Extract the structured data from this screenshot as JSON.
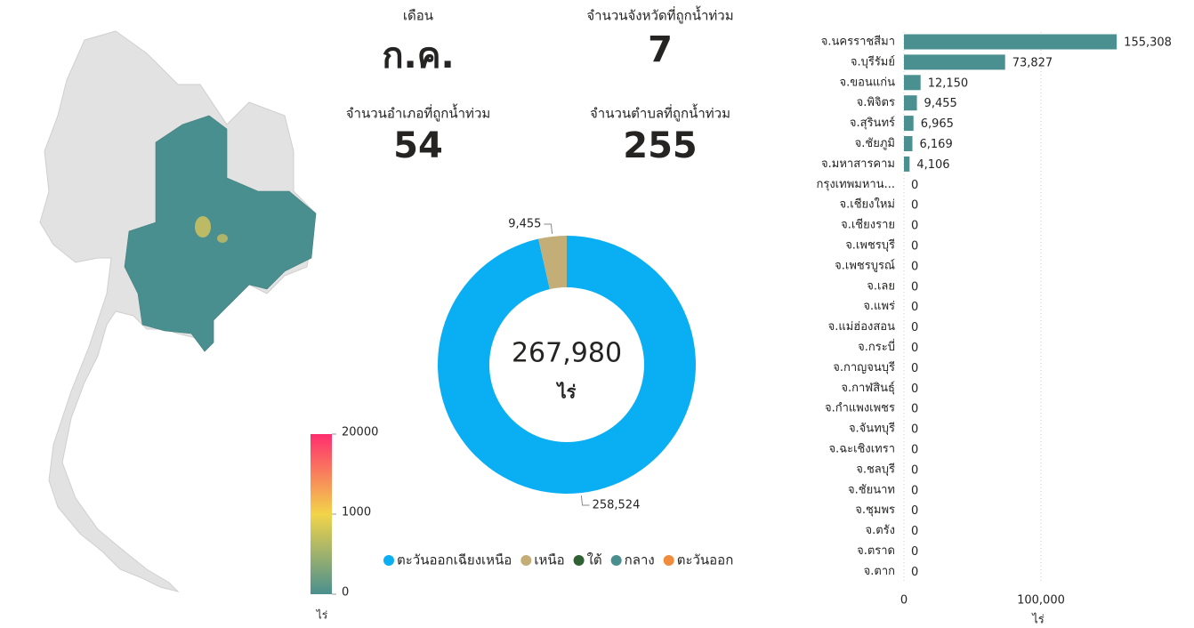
{
  "cards": [
    {
      "label": "เดือน",
      "value": "ก.ค."
    },
    {
      "label": "จำนวนจังหวัดที่ถูกน้ำท่วม",
      "value": 7
    },
    {
      "label": "จำนวนอำเภอที่ถูกน้ำท่วม",
      "value": 54
    },
    {
      "label": "จำนวนตำบลที่ถูกน้ำท่วม",
      "value": 255
    }
  ],
  "chart_data": [
    {
      "type": "map",
      "colorbar": {
        "ticks": [
          0,
          1000,
          20000
        ],
        "label": "ไร่",
        "colors": [
          "#4a8f8f",
          "#f2d44a",
          "#ff2d6f"
        ]
      }
    },
    {
      "type": "pie",
      "center_label": "267,980",
      "center_unit": "ไร่",
      "categories": [
        "ตะวันออกเฉียงเหนือ",
        "เหนือ",
        "ใต้",
        "กลาง",
        "ตะวันออก"
      ],
      "values": [
        258524,
        9455,
        0,
        0,
        0
      ],
      "value_labels": [
        "258,524",
        "9,455",
        null,
        null,
        null
      ],
      "colors": [
        "#0aaef2",
        "#c4ae78",
        "#2f6133",
        "#4a8f8f",
        "#f08c3c"
      ]
    },
    {
      "type": "hbar",
      "xlabel": "ไร่",
      "color": "#4a9090",
      "categories": [
        "จ.นครราชสีมา",
        "จ.บุรีรัมย์",
        "จ.ขอนแก่น",
        "จ.พิจิตร",
        "จ.สุรินทร์",
        "จ.ชัยภูมิ",
        "จ.มหาสารคาม",
        "กรุงเทพมหาน...",
        "จ.เชียงใหม่",
        "จ.เชียงราย",
        "จ.เพชรบุรี",
        "จ.เพชรบูรณ์",
        "จ.เลย",
        "จ.แพร่",
        "จ.แม่ฮ่องสอน",
        "จ.กระบี่",
        "จ.กาญจนบุรี",
        "จ.กาฬสินธุ์",
        "จ.กำแพงเพชร",
        "จ.จันทบุรี",
        "จ.ฉะเชิงเทรา",
        "จ.ชลบุรี",
        "จ.ชัยนาท",
        "จ.ชุมพร",
        "จ.ตรัง",
        "จ.ตราด",
        "จ.ตาก"
      ],
      "values": [
        155308,
        73827,
        12150,
        9455,
        6965,
        6169,
        4106,
        0,
        0,
        0,
        0,
        0,
        0,
        0,
        0,
        0,
        0,
        0,
        0,
        0,
        0,
        0,
        0,
        0,
        0,
        0,
        0
      ],
      "value_labels": [
        "155,308",
        "73,827",
        "12,150",
        "9,455",
        "6,965",
        "6,169",
        "4,106",
        "0",
        "0",
        "0",
        "0",
        "0",
        "0",
        "0",
        "0",
        "0",
        "0",
        "0",
        "0",
        "0",
        "0",
        "0",
        "0",
        "0",
        "0",
        "0",
        "0"
      ],
      "xlim": [
        0,
        200000
      ],
      "xticks": [
        0,
        {
          "value": 100000,
          "label": "100,000"
        }
      ],
      "grid": true
    }
  ]
}
